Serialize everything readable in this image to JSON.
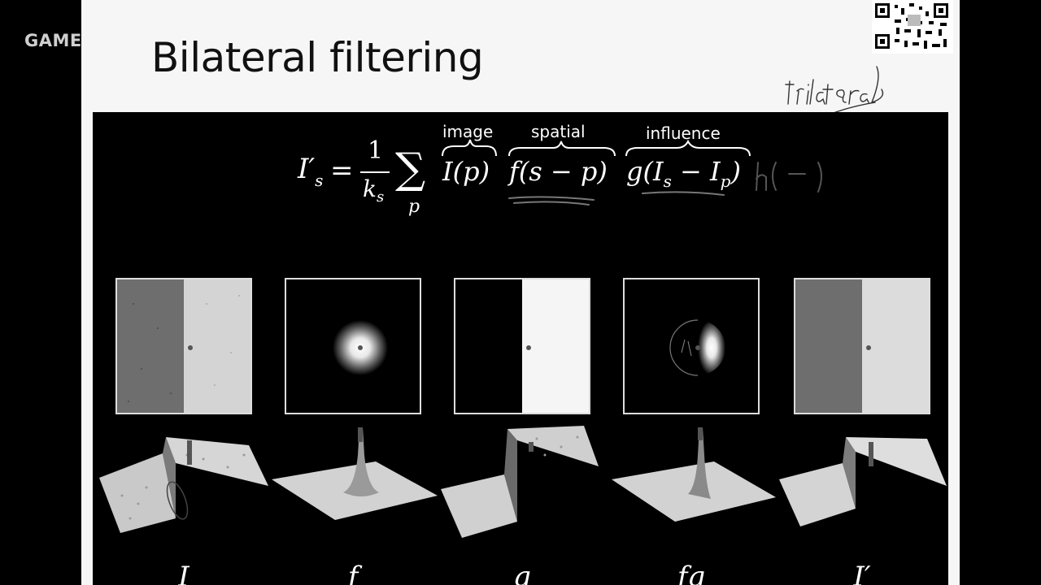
{
  "header": {
    "course_label": "GAME"
  },
  "slide": {
    "title": "Bilateral filtering",
    "handwritten_note": "trilateral"
  },
  "formula": {
    "lhs": "I′s",
    "equals": "=",
    "fraction_num": "1",
    "fraction_den": "ks",
    "sum": "∑",
    "sum_index": "p",
    "term_image": "I(p)",
    "term_spatial": "f(s − p)",
    "term_influence": "g(Is − Ip)",
    "handwritten_extra": "h( — )",
    "brace_labels": [
      "image",
      "spatial",
      "influence"
    ]
  },
  "panels": [
    {
      "id": "I",
      "label": "I",
      "kind": "step-noisy"
    },
    {
      "id": "f",
      "label": "f",
      "kind": "gaussian"
    },
    {
      "id": "g",
      "label": "g",
      "kind": "step-binary"
    },
    {
      "id": "fg",
      "label": "fg",
      "kind": "half-gaussian"
    },
    {
      "id": "Iprime",
      "label": "I′",
      "kind": "step-smooth"
    }
  ],
  "colors": {
    "slide_bg": "#f6f6f6",
    "figure_bg": "#000000",
    "title_text": "#111111",
    "handwriting": "#333333",
    "panel_border": "#dddddd"
  }
}
